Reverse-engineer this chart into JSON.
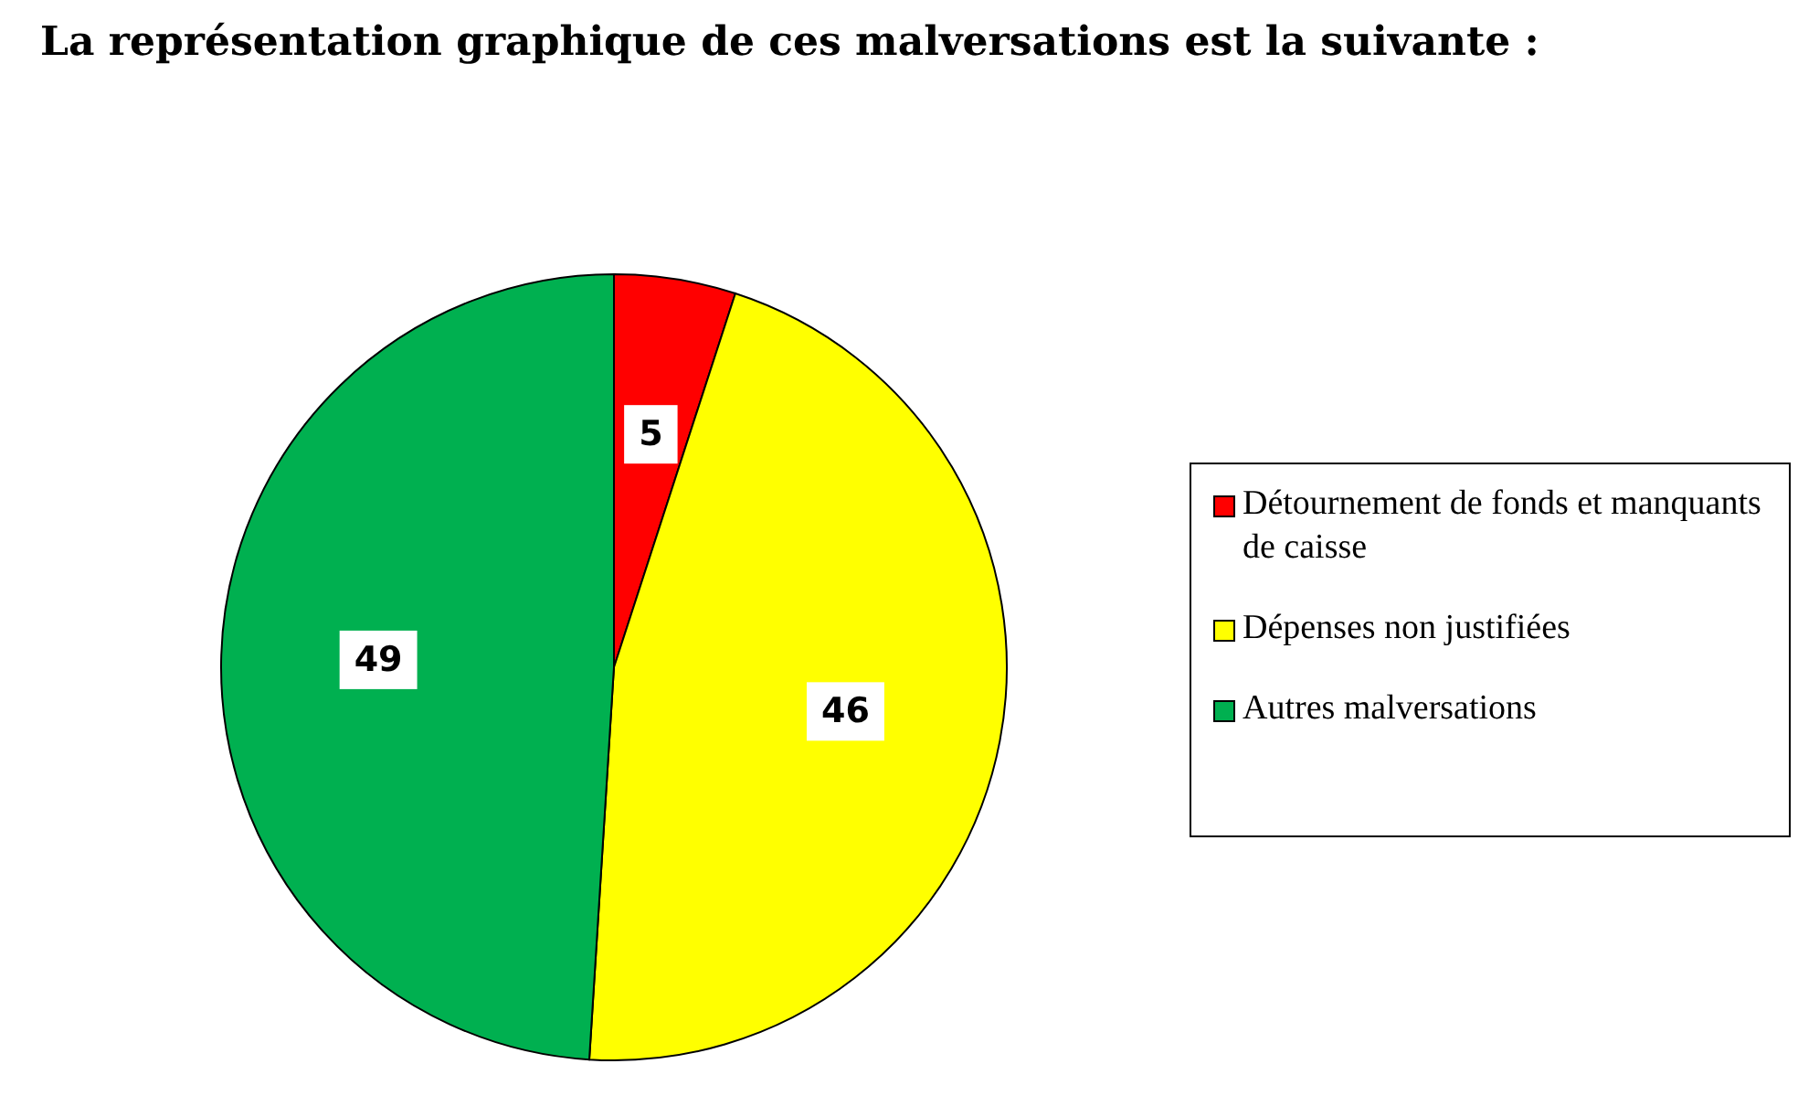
{
  "chart_data": {
    "type": "pie",
    "title": "La représentation graphique de ces malversations est la suivante :",
    "categories": [
      "Détournement de fonds et manquants de caisse",
      "Dépenses non justifiées",
      "Autres malversations"
    ],
    "values": [
      5,
      46,
      49
    ],
    "colors": [
      "#ff0000",
      "#ffff00",
      "#00b050"
    ],
    "data_labels": true,
    "legend": "right"
  }
}
